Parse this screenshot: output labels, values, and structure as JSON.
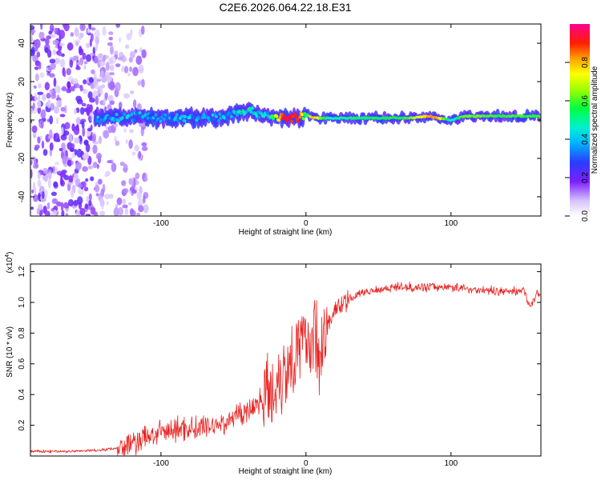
{
  "title": "C2E6.2026.064.22.18.E31",
  "chart_data": [
    {
      "type": "heatmap",
      "name": "spectrogram",
      "xlabel": "Height of straight line (km)",
      "ylabel": "Frequency (Hz)",
      "xlim": [
        -190,
        162
      ],
      "ylim": [
        -50,
        50
      ],
      "xticks": [
        -100,
        0,
        100
      ],
      "yticks": [
        -40,
        -20,
        0,
        20,
        40
      ],
      "signal_track": {
        "heights": [
          -145,
          -130,
          -115,
          -100,
          -85,
          -70,
          -55,
          -45,
          -35,
          -25,
          -15,
          -5,
          0,
          5,
          15,
          40,
          70,
          85,
          90,
          100,
          110,
          130,
          162
        ],
        "center_frequency_hz": [
          1,
          1,
          2,
          1,
          1,
          1,
          2,
          5,
          4,
          2,
          1,
          1,
          3,
          1,
          1,
          1,
          1,
          2,
          1,
          0,
          2,
          2,
          2
        ],
        "peak_amplitude": [
          0.35,
          0.38,
          0.4,
          0.35,
          0.4,
          0.35,
          0.4,
          0.45,
          0.45,
          0.45,
          0.95,
          0.95,
          0.5,
          0.85,
          0.5,
          0.55,
          0.6,
          0.85,
          0.85,
          0.45,
          0.65,
          0.6,
          0.6
        ]
      },
      "noise_region_km": [
        -190,
        -120
      ]
    },
    {
      "type": "colorbar",
      "label": "Normalized spectral amplitude",
      "ticks": [
        0.0,
        0.2,
        0.4,
        0.6,
        0.8
      ],
      "range": [
        0,
        1
      ]
    },
    {
      "type": "line",
      "name": "snr",
      "xlabel": "Height of straight line (km)",
      "ylabel": "SNR (10 * v/v)",
      "scale_label": "(x10",
      "scale_exp": "4",
      "scale_close": ")",
      "xlim": [
        -190,
        162
      ],
      "ylim": [
        0,
        1.25
      ],
      "xticks": [
        -100,
        0,
        100
      ],
      "yticks": [
        0.2,
        0.4,
        0.6,
        0.8,
        1.0,
        1.2
      ],
      "series": [
        {
          "name": "SNR",
          "color": "#e8211f",
          "x": [
            -190,
            -160,
            -140,
            -125,
            -115,
            -105,
            -95,
            -85,
            -75,
            -65,
            -55,
            -45,
            -40,
            -35,
            -30,
            -25,
            -20,
            -15,
            -10,
            -5,
            0,
            5,
            10,
            15,
            20,
            30,
            40,
            60,
            80,
            100,
            120,
            140,
            150,
            155,
            160
          ],
          "y": [
            0.03,
            0.03,
            0.04,
            0.06,
            0.1,
            0.14,
            0.16,
            0.18,
            0.18,
            0.2,
            0.22,
            0.28,
            0.3,
            0.32,
            0.4,
            0.38,
            0.5,
            0.55,
            0.65,
            0.7,
            0.75,
            0.78,
            0.7,
            0.85,
            0.95,
            1.02,
            1.07,
            1.1,
            1.1,
            1.1,
            1.08,
            1.07,
            1.08,
            0.98,
            1.06
          ]
        }
      ]
    }
  ]
}
